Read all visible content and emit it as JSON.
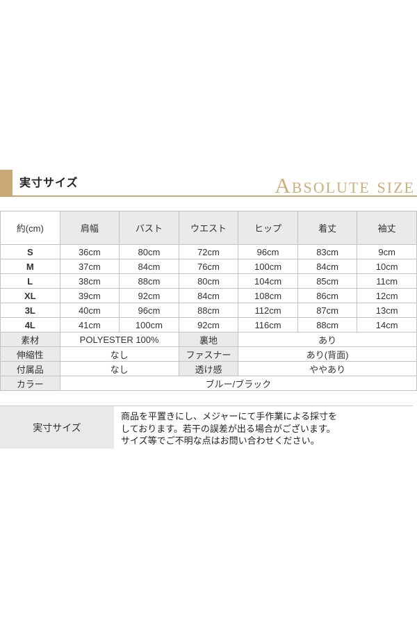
{
  "header": {
    "title_jp": "実寸サイズ",
    "title_en": "Absolute Size"
  },
  "size_table": {
    "columns": [
      "約(cm)",
      "肩幅",
      "バスト",
      "ウエスト",
      "ヒップ",
      "着丈",
      "袖丈"
    ],
    "rows": [
      {
        "size": "S",
        "values": [
          "36cm",
          "80cm",
          "72cm",
          "96cm",
          "83cm",
          "9cm"
        ]
      },
      {
        "size": "M",
        "values": [
          "37cm",
          "84cm",
          "76cm",
          "100cm",
          "84cm",
          "10cm"
        ]
      },
      {
        "size": "L",
        "values": [
          "38cm",
          "88cm",
          "80cm",
          "104cm",
          "85cm",
          "11cm"
        ]
      },
      {
        "size": "XL",
        "values": [
          "39cm",
          "92cm",
          "84cm",
          "108cm",
          "86cm",
          "12cm"
        ]
      },
      {
        "size": "3L",
        "values": [
          "40cm",
          "96cm",
          "88cm",
          "112cm",
          "87cm",
          "13cm"
        ]
      },
      {
        "size": "4L",
        "values": [
          "41cm",
          "100cm",
          "92cm",
          "116cm",
          "88cm",
          "14cm"
        ]
      }
    ]
  },
  "specs": [
    {
      "label_a": "素材",
      "value_a": "POLYESTER 100%",
      "label_b": "裏地",
      "value_b": "あり"
    },
    {
      "label_a": "伸縮性",
      "value_a": "なし",
      "label_b": "ファスナー",
      "value_b": "あり(背面)"
    },
    {
      "label_a": "付属品",
      "value_a": "なし",
      "label_b": "透け感",
      "value_b": "ややあり"
    },
    {
      "label_a": "カラー",
      "value_a": "ブルー/ブラック"
    }
  ],
  "note": {
    "label": "実寸サイズ",
    "lines": [
      "商品を平置きにし、メジャーにて手作業による採寸を",
      "しております。若干の誤差が出る場合がございます。",
      "サイズ等でご不明な点はお問い合わせください。"
    ]
  },
  "colors": {
    "accent_gold": "#c9a876",
    "table_border": "#c3c3c3",
    "cell_gray": "#eaeaea",
    "note_label_gray": "#e9e9e9",
    "text": "#333333"
  }
}
